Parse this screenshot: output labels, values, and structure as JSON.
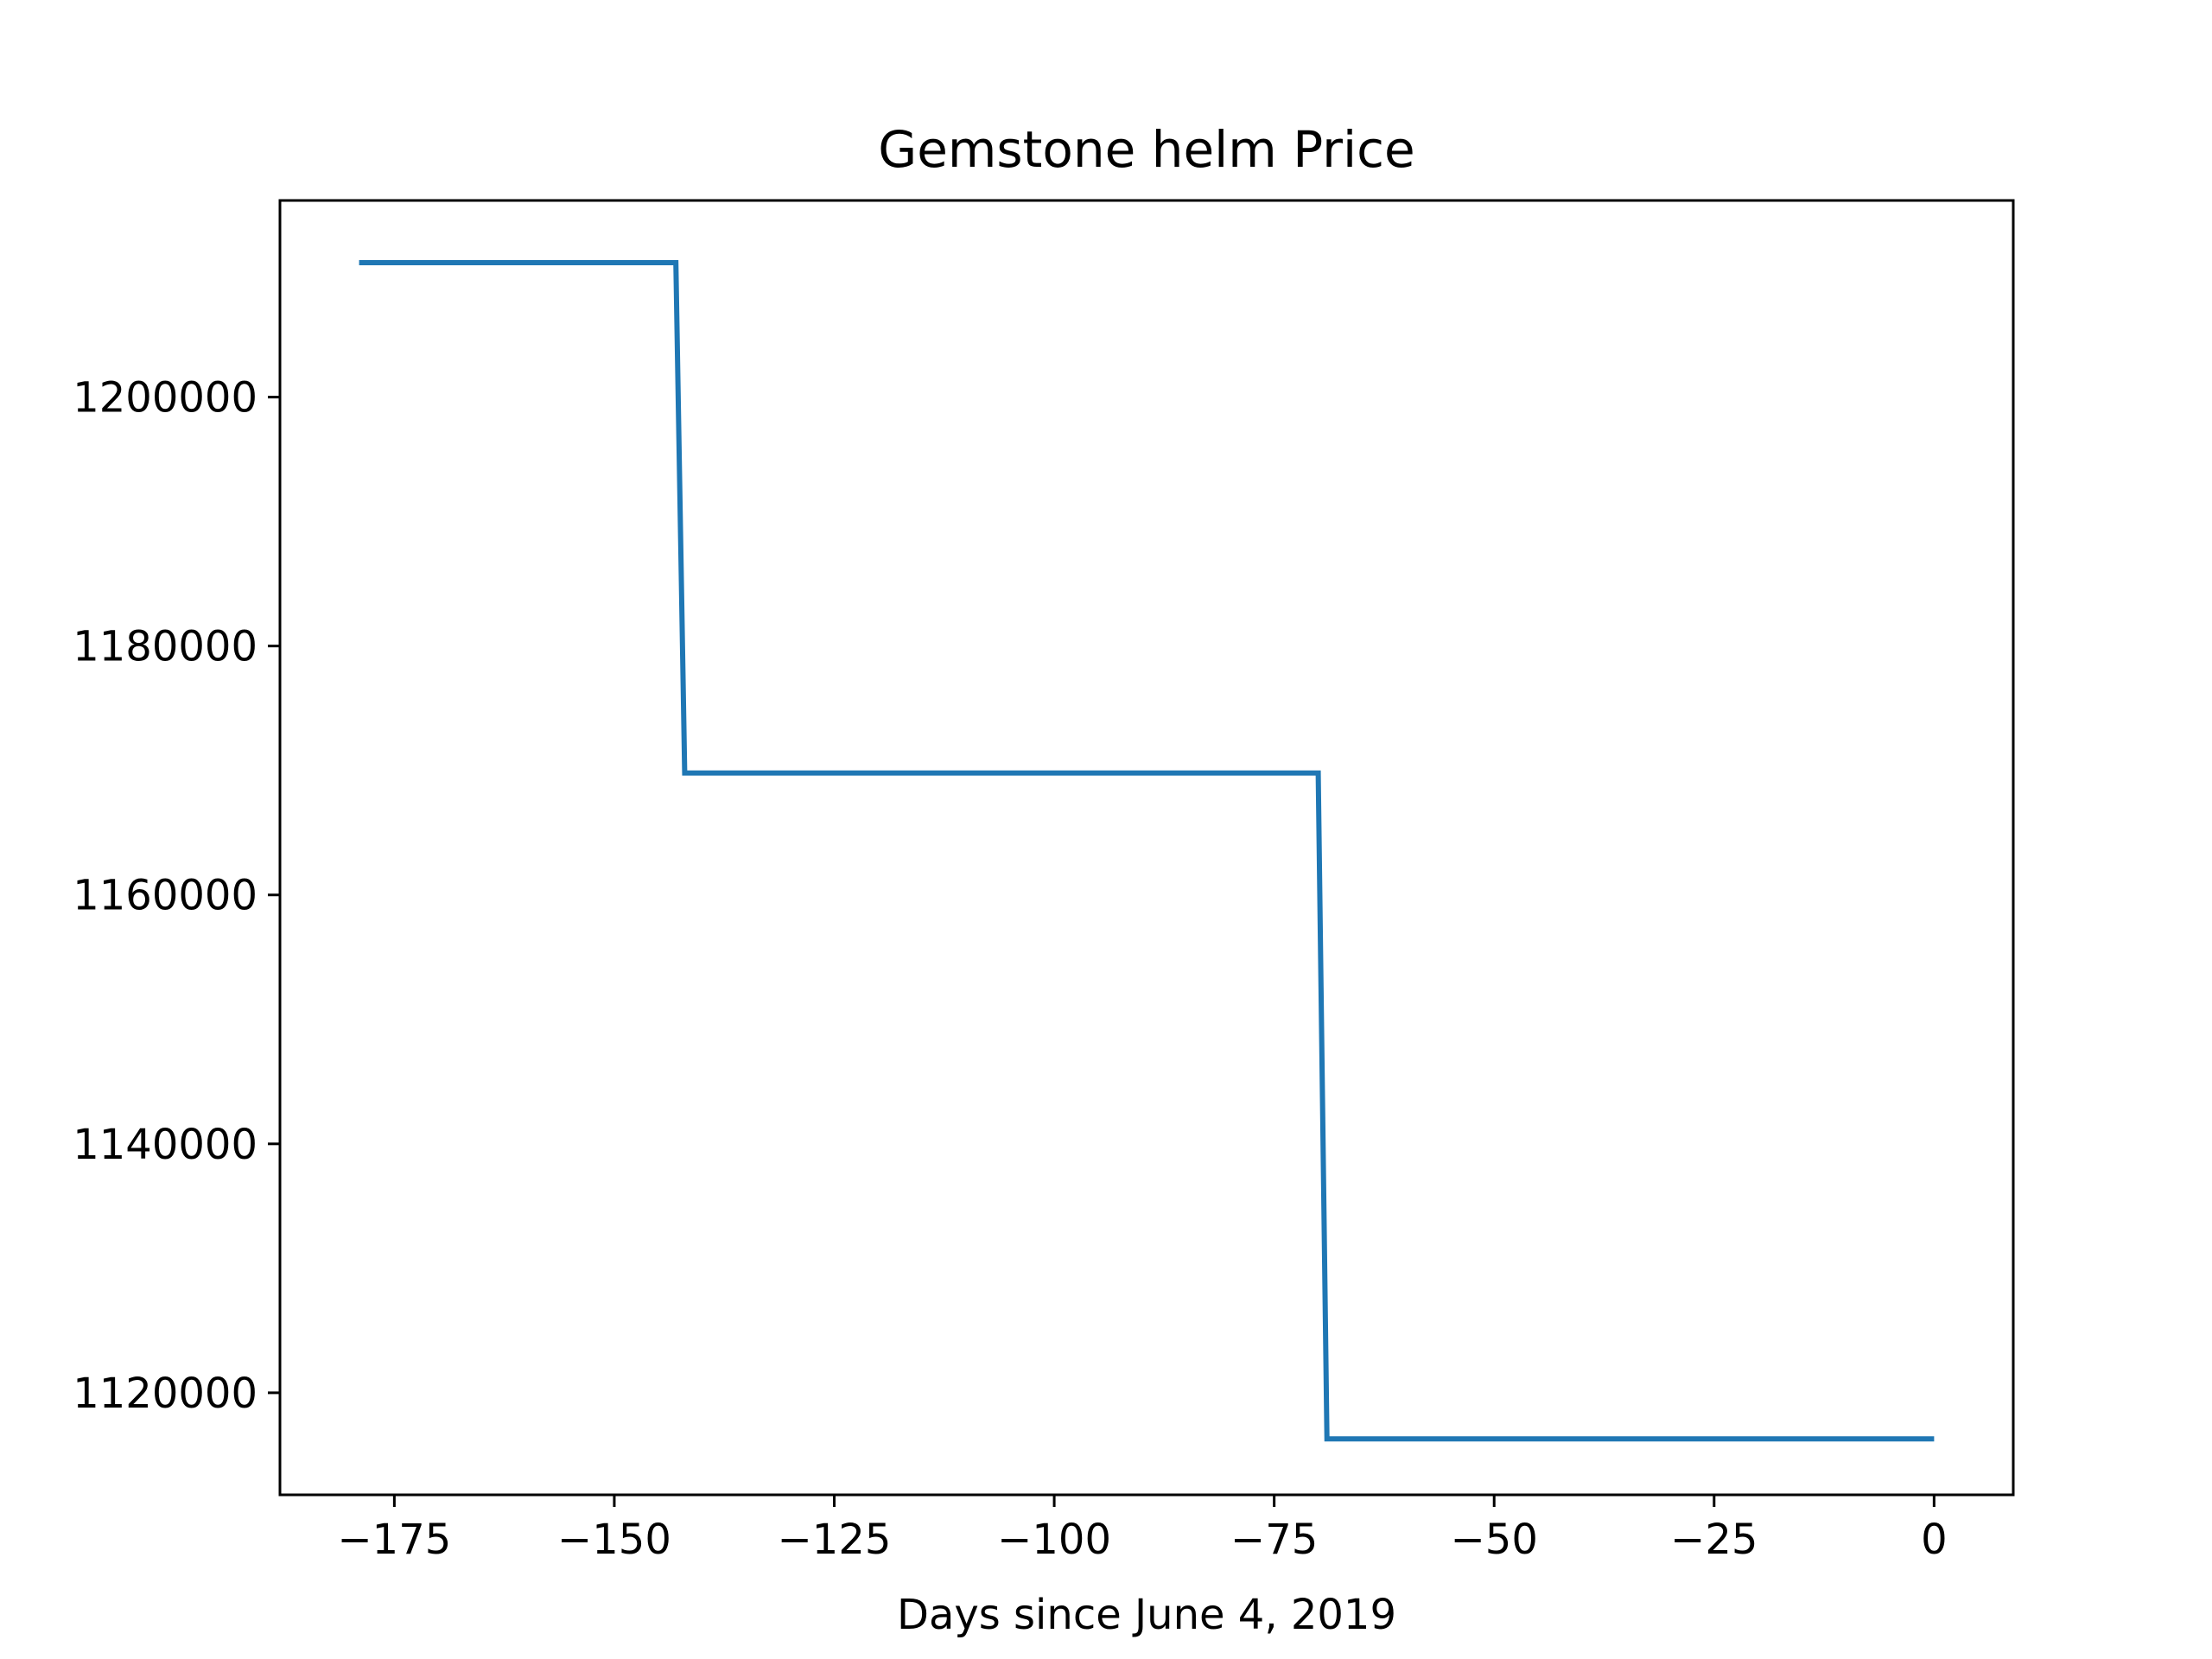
{
  "chart_data": {
    "type": "line",
    "title": "Gemstone helm Price",
    "xlabel": "Days since June 4, 2019",
    "ylabel": "",
    "xlim": [
      -188,
      9
    ],
    "ylim": [
      1111800,
      1215800
    ],
    "xticks": [
      -175,
      -150,
      -125,
      -100,
      -75,
      -50,
      -25,
      0
    ],
    "xtick_labels": [
      "−175",
      "−150",
      "−125",
      "−100",
      "−75",
      "−50",
      "−25",
      "0"
    ],
    "yticks": [
      1120000,
      1140000,
      1160000,
      1180000,
      1200000
    ],
    "ytick_labels": [
      "1120000",
      "1140000",
      "1160000",
      "1180000",
      "1200000"
    ],
    "grid": false,
    "series": [
      {
        "color": "#1f77b4",
        "x": [
          -179,
          -143,
          -142,
          -70,
          -69,
          0
        ],
        "y": [
          1210800,
          1210800,
          1169800,
          1169800,
          1116300,
          1116300
        ]
      }
    ]
  }
}
